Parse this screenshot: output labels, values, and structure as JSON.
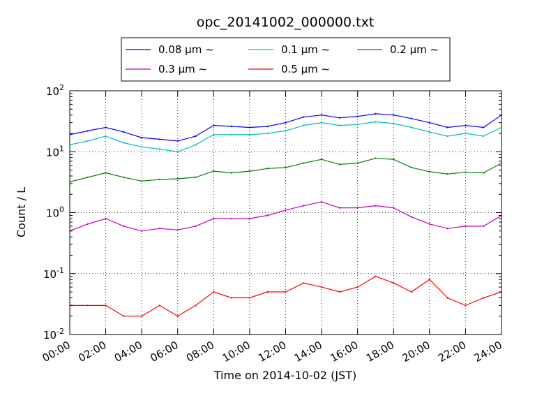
{
  "chart_data": {
    "type": "line",
    "title": "opc_20141002_000000.txt",
    "xlabel": "Time on 2014-10-02 (JST)",
    "ylabel": "Count / L",
    "y_scale": "log",
    "ylim": [
      0.01,
      100
    ],
    "xlim": [
      "00:00",
      "24:00"
    ],
    "grid": true,
    "grid_style": "dotted",
    "legend_position": "top-center",
    "x_ticks": [
      "00:00",
      "02:00",
      "04:00",
      "06:00",
      "08:00",
      "10:00",
      "12:00",
      "14:00",
      "16:00",
      "18:00",
      "20:00",
      "22:00",
      "24:00"
    ],
    "y_ticks": [
      {
        "base": "10",
        "exp": "-2"
      },
      {
        "base": "10",
        "exp": "-1"
      },
      {
        "base": "10",
        "exp": "0"
      },
      {
        "base": "10",
        "exp": "1"
      },
      {
        "base": "10",
        "exp": "2"
      }
    ],
    "x": [
      "00:00",
      "01:00",
      "02:00",
      "03:00",
      "04:00",
      "05:00",
      "06:00",
      "07:00",
      "08:00",
      "09:00",
      "10:00",
      "11:00",
      "12:00",
      "13:00",
      "14:00",
      "15:00",
      "16:00",
      "17:00",
      "18:00",
      "19:00",
      "20:00",
      "21:00",
      "22:00",
      "23:00",
      "24:00"
    ],
    "series": [
      {
        "name": "0.08 μm ~",
        "color": "#0000ff",
        "values": [
          19,
          22,
          25,
          21,
          17,
          16,
          15,
          18,
          27,
          26,
          25,
          26,
          30,
          37,
          40,
          36,
          38,
          42,
          40,
          35,
          30,
          25,
          27,
          25,
          40
        ]
      },
      {
        "name": "0.1 μm ~",
        "color": "#00bfbf",
        "values": [
          13,
          15,
          18,
          14,
          12,
          11,
          10,
          13,
          19,
          19,
          19,
          20,
          22,
          27,
          30,
          27,
          28,
          31,
          29,
          25,
          21,
          18,
          20,
          18,
          25
        ]
      },
      {
        "name": "0.2 μm ~",
        "color": "#008000",
        "values": [
          3.2,
          3.8,
          4.5,
          3.8,
          3.3,
          3.5,
          3.6,
          3.8,
          4.8,
          4.5,
          4.8,
          5.3,
          5.5,
          6.5,
          7.5,
          6.2,
          6.5,
          7.8,
          7.5,
          5.5,
          4.7,
          4.3,
          4.6,
          4.5,
          6.5
        ]
      },
      {
        "name": "0.3 μm ~",
        "color": "#bf00bf",
        "values": [
          0.5,
          0.65,
          0.8,
          0.6,
          0.5,
          0.55,
          0.52,
          0.6,
          0.8,
          0.8,
          0.8,
          0.9,
          1.1,
          1.3,
          1.5,
          1.2,
          1.2,
          1.3,
          1.2,
          0.85,
          0.65,
          0.55,
          0.6,
          0.6,
          0.9
        ]
      },
      {
        "name": "0.5 μm ~",
        "color": "#ff0000",
        "values": [
          0.03,
          0.03,
          0.03,
          0.02,
          0.02,
          0.03,
          0.02,
          0.03,
          0.05,
          0.04,
          0.04,
          0.05,
          0.05,
          0.07,
          0.06,
          0.05,
          0.06,
          0.09,
          0.07,
          0.05,
          0.08,
          0.04,
          0.03,
          0.04,
          0.05
        ]
      }
    ]
  }
}
